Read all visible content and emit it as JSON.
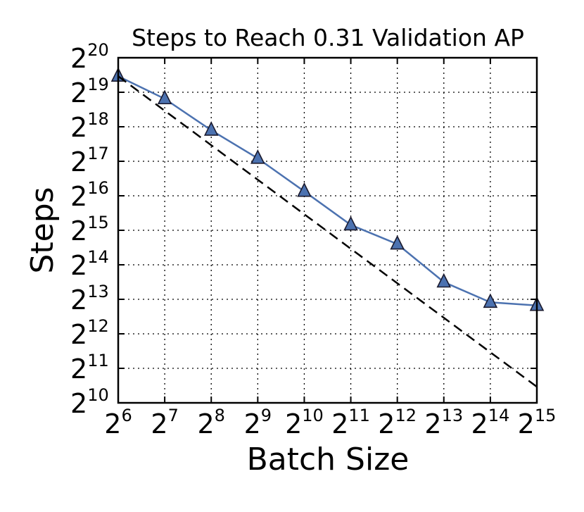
{
  "chart_data": {
    "type": "line",
    "title": "Steps to Reach 0.31 Validation AP",
    "xlabel": "Batch Size",
    "ylabel": "Steps",
    "x_scale": "log2",
    "y_scale": "log2",
    "x_tick_base": "2",
    "y_tick_base": "2",
    "x_tick_exponents": [
      "6",
      "7",
      "8",
      "9",
      "10",
      "11",
      "12",
      "13",
      "14",
      "15"
    ],
    "y_tick_exponents": [
      "10",
      "11",
      "12",
      "13",
      "14",
      "15",
      "16",
      "17",
      "18",
      "19",
      "20"
    ],
    "xlim": [
      64,
      32768
    ],
    "ylim": [
      1024,
      1048576
    ],
    "grid": true,
    "series": [
      {
        "style": "solid",
        "marker": "triangle",
        "color": "#4c72b0",
        "x": [
          64,
          128,
          256,
          512,
          1024,
          2048,
          4096,
          8192,
          16384,
          32768
        ],
        "y": [
          724077,
          459974,
          244589,
          139022,
          71618,
          36462,
          24834,
          11585,
          7711,
          7241
        ]
      },
      {
        "style": "dashed",
        "color": "#000000",
        "x": [
          64,
          32768
        ],
        "y": [
          724077,
          1414
        ]
      }
    ]
  }
}
